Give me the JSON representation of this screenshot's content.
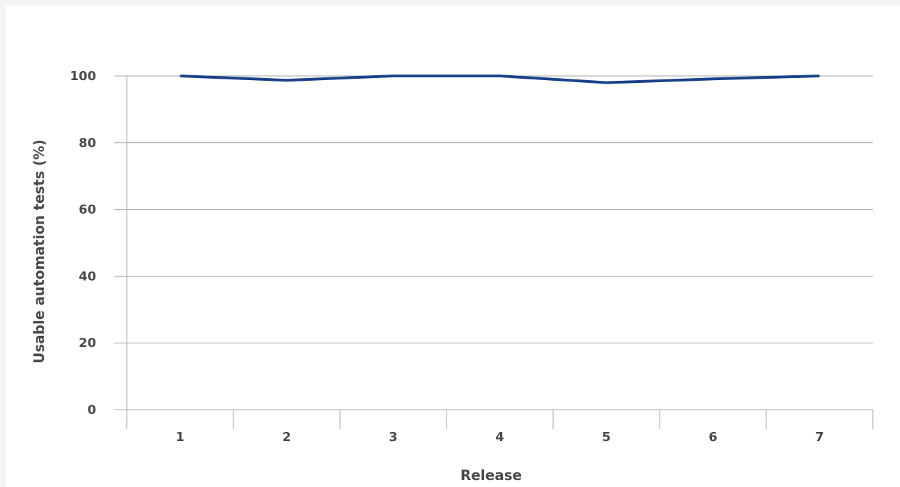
{
  "chart_data": {
    "type": "line",
    "title": "",
    "xlabel": "Release",
    "ylabel": "Usable automation tests (%)",
    "categories": [
      "1",
      "2",
      "3",
      "4",
      "5",
      "6",
      "7"
    ],
    "series": [
      {
        "values": [
          100,
          98.7,
          100,
          100,
          98,
          99.1,
          100
        ]
      }
    ],
    "ylim": [
      0,
      100
    ],
    "yticks": [
      0,
      20,
      40,
      60,
      80,
      100
    ],
    "grid": true,
    "legend": "none",
    "colors": {
      "series": "#1a428a"
    }
  }
}
